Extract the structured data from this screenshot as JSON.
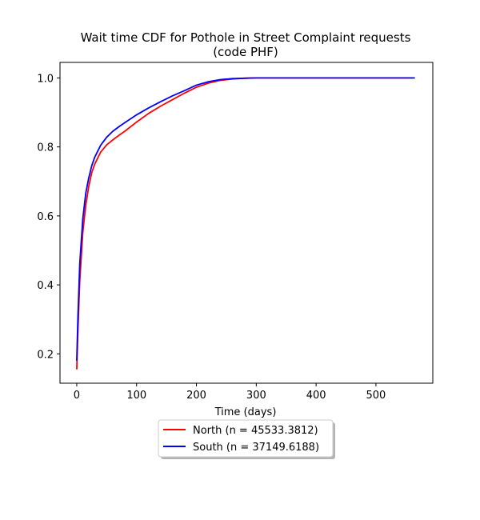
{
  "chart_data": {
    "type": "line",
    "title_lines": [
      "Wait time CDF for Pothole in Street Complaint  requests",
      "(code PHF)"
    ],
    "xlabel": "Time (days)",
    "ylabel": "",
    "xlim": [
      -28,
      595
    ],
    "ylim": [
      0.115,
      1.045
    ],
    "xticks": [
      0,
      100,
      200,
      300,
      400,
      500
    ],
    "xtick_labels": [
      "0",
      "100",
      "200",
      "300",
      "400",
      "500"
    ],
    "yticks": [
      0.2,
      0.4,
      0.6,
      0.8,
      1.0
    ],
    "ytick_labels": [
      "0.2",
      "0.4",
      "0.6",
      "0.8",
      "1.0"
    ],
    "grid": false,
    "legend_position": "below-center",
    "series": [
      {
        "name": "North (n = 45533.3812)",
        "color": "#ff0000",
        "x": [
          0,
          2,
          5,
          10,
          15,
          20,
          25,
          30,
          40,
          50,
          60,
          70,
          80,
          100,
          120,
          140,
          160,
          180,
          200,
          220,
          240,
          260,
          280,
          300,
          350,
          400,
          450,
          500,
          565
        ],
        "y": [
          0.155,
          0.27,
          0.41,
          0.55,
          0.63,
          0.685,
          0.725,
          0.75,
          0.785,
          0.806,
          0.82,
          0.833,
          0.845,
          0.872,
          0.897,
          0.918,
          0.937,
          0.956,
          0.973,
          0.985,
          0.993,
          0.997,
          0.999,
          1.0,
          1.0,
          1.0,
          1.0,
          1.0,
          1.0
        ]
      },
      {
        "name": "South (n = 37149.6188)",
        "color": "#0000ff",
        "x": [
          0,
          2,
          5,
          10,
          15,
          20,
          25,
          30,
          40,
          50,
          60,
          70,
          80,
          100,
          120,
          140,
          160,
          180,
          200,
          220,
          240,
          260,
          280,
          300,
          350,
          400,
          450,
          500,
          565
        ],
        "y": [
          0.18,
          0.31,
          0.46,
          0.59,
          0.665,
          0.71,
          0.745,
          0.77,
          0.805,
          0.828,
          0.845,
          0.858,
          0.87,
          0.893,
          0.913,
          0.931,
          0.948,
          0.963,
          0.979,
          0.989,
          0.995,
          0.998,
          0.999,
          1.0,
          1.0,
          1.0,
          1.0,
          1.0,
          1.0
        ]
      }
    ]
  }
}
